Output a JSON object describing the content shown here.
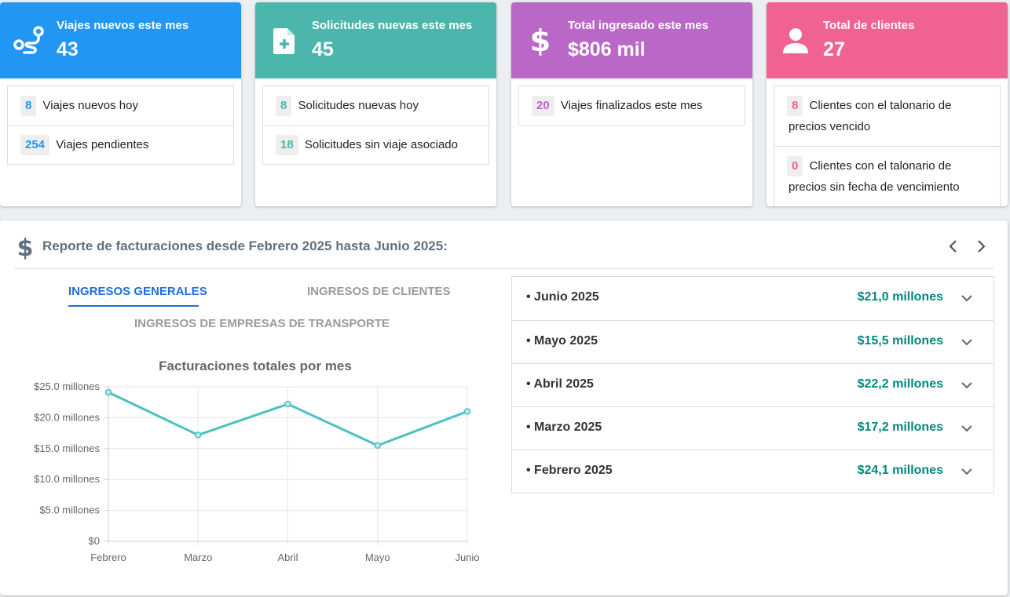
{
  "cards": [
    {
      "title": "Viajes nuevos este mes",
      "value": "43",
      "color": "#2196f3",
      "icon": "route-icon",
      "rows": [
        {
          "count": "8",
          "text": "Viajes nuevos hoy"
        },
        {
          "count": "254",
          "text": "Viajes pendientes"
        }
      ]
    },
    {
      "title": "Solicitudes nuevas este mes",
      "value": "45",
      "color": "#4db6ac",
      "icon": "file-plus-icon",
      "rows": [
        {
          "count": "8",
          "text": "Solicitudes nuevas hoy"
        },
        {
          "count": "18",
          "text": "Solicitudes sin viaje asociado"
        }
      ]
    },
    {
      "title": "Total ingresado este mes",
      "value": "$806 mil",
      "color": "#ba68c8",
      "icon": "dollar-icon",
      "rows": [
        {
          "count": "20",
          "text": "Viajes finalizados este mes"
        }
      ]
    },
    {
      "title": "Total de clientes",
      "value": "27",
      "color": "#f06292",
      "icon": "person-icon",
      "rows": [
        {
          "count": "8",
          "text": "Clientes con el talonario de precios vencido"
        },
        {
          "count": "0",
          "text": "Clientes con el talonario de precios sin fecha de vencimiento"
        }
      ]
    }
  ],
  "report": {
    "title": "Reporte de facturaciones desde Febrero 2025 hasta Junio 2025:",
    "tabs": [
      "INGRESOS GENERALES",
      "INGRESOS DE CLIENTES",
      "INGRESOS DE EMPRESAS DE TRANSPORTE"
    ],
    "months": [
      {
        "label": "• Junio 2025",
        "amount": "$21,0 millones"
      },
      {
        "label": "• Mayo 2025",
        "amount": "$15,5 millones"
      },
      {
        "label": "• Abril 2025",
        "amount": "$22,2 millones"
      },
      {
        "label": "• Marzo 2025",
        "amount": "$17,2 millones"
      },
      {
        "label": "• Febrero 2025",
        "amount": "$24,1 millones"
      }
    ]
  },
  "chart_data": {
    "type": "line",
    "title": "Facturaciones totales por mes",
    "categories": [
      "Febrero",
      "Marzo",
      "Abril",
      "Mayo",
      "Junio"
    ],
    "values": [
      24.1,
      17.2,
      22.2,
      15.5,
      21.0
    ],
    "unit": "millones",
    "ylim": [
      0,
      25
    ],
    "yticks": [
      "$0",
      "$5.0 millones",
      "$10.0 millones",
      "$15.0 millones",
      "$20.0 millones",
      "$25.0 millones"
    ],
    "grid": true,
    "color": "#4dc0c0"
  }
}
